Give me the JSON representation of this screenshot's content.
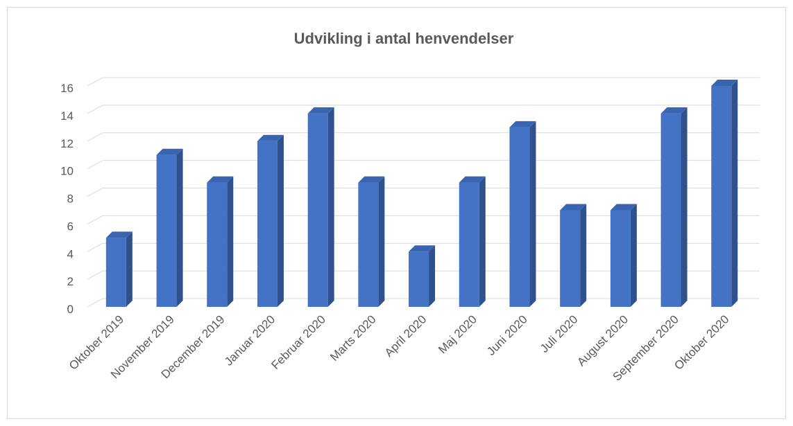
{
  "chart_data": {
    "type": "bar3d",
    "title": "Udvikling i antal henvendelser",
    "categories": [
      "Oktober 2019",
      "November  2019",
      "December 2019",
      "Januar 2020",
      "Februar 2020",
      "Marts 2020",
      "April 2020",
      "Maj 2020",
      "Juni 2020",
      "Juli 2020",
      "August 2020",
      "September 2020",
      "Oktober 2020"
    ],
    "values": [
      5,
      11,
      9,
      12,
      14,
      9,
      4,
      9,
      13,
      7,
      7,
      14,
      16
    ],
    "color": "#4472c4",
    "ylim": [
      0,
      16
    ],
    "yticks": [
      0,
      2,
      4,
      6,
      8,
      10,
      12,
      14,
      16
    ],
    "grid": true
  }
}
